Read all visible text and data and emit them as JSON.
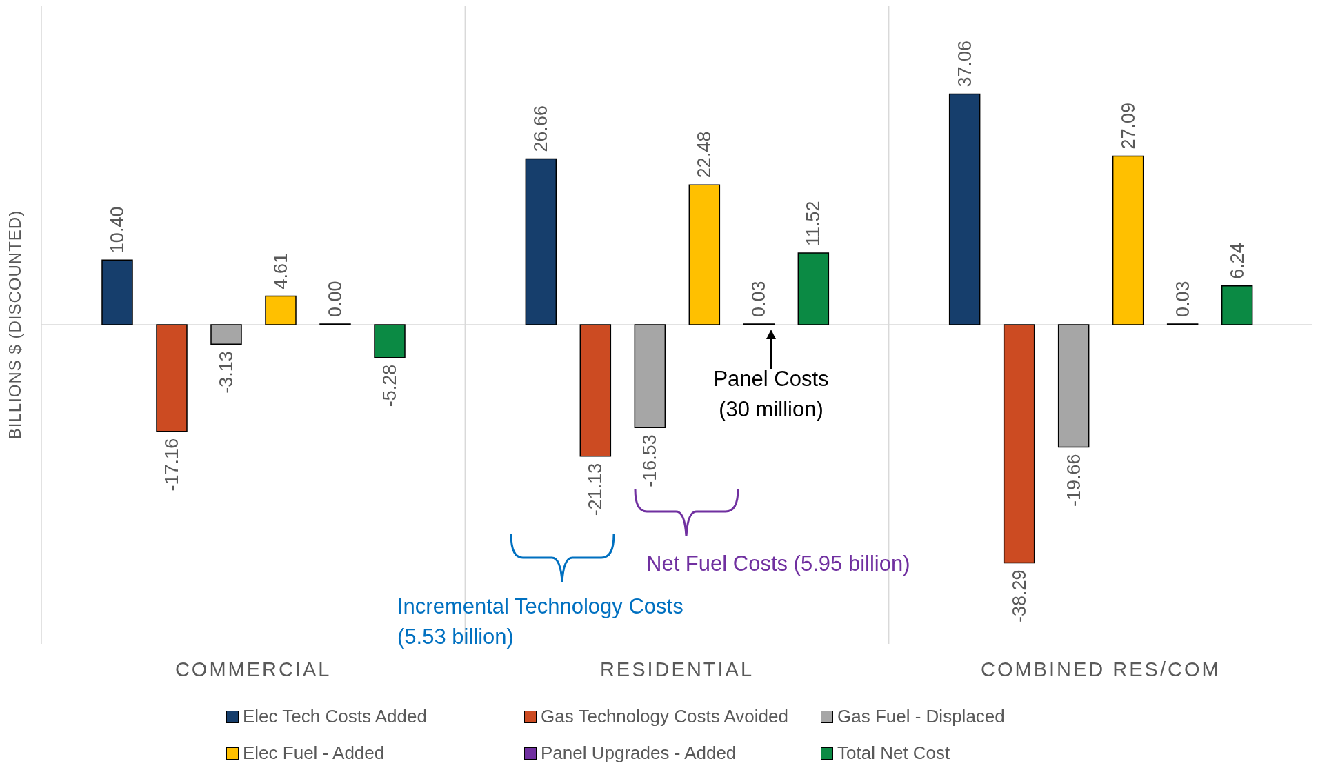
{
  "chart_data": {
    "type": "bar",
    "ylabel": "BILLIONS $ (DISCOUNTED)",
    "categories": [
      "COMMERCIAL",
      "RESIDENTIAL",
      "COMBINED RES/COM"
    ],
    "series": [
      {
        "name": "Elec Tech Costs Added",
        "color": "#163e6c",
        "values": [
          10.4,
          26.66,
          37.06
        ],
        "value_labels": [
          "10.40",
          "26.66",
          "37.06"
        ]
      },
      {
        "name": "Gas Technology Costs Avoided",
        "color": "#cc4b22",
        "values": [
          -17.16,
          -21.13,
          -38.29
        ],
        "value_labels": [
          "-17.16",
          "-21.13",
          "-38.29"
        ]
      },
      {
        "name": "Gas Fuel - Displaced",
        "color": "#a6a6a6",
        "values": [
          -3.13,
          -16.53,
          -19.66
        ],
        "value_labels": [
          "-3.13",
          "-16.53",
          "-19.66"
        ]
      },
      {
        "name": "Elec Fuel - Added",
        "color": "#ffc000",
        "values": [
          4.61,
          22.48,
          27.09
        ],
        "value_labels": [
          "4.61",
          "22.48",
          "27.09"
        ]
      },
      {
        "name": "Panel Upgrades - Added",
        "color": "#7030a0",
        "values": [
          0.0,
          0.03,
          0.03
        ],
        "value_labels": [
          "0.00",
          "0.03",
          "0.03"
        ]
      },
      {
        "name": "Total Net Cost",
        "color": "#0b8a44",
        "values": [
          -5.28,
          11.52,
          6.24
        ],
        "value_labels": [
          "-5.28",
          "11.52",
          "6.24"
        ]
      }
    ],
    "tick_labels": "x",
    "grid": "x",
    "legend": "bottom",
    "annotations": [
      "Panel Costs (30 million)",
      "Net Fuel Costs (5.95 billion)",
      "Incremental Technology Costs (5.53 billion)"
    ]
  }
}
